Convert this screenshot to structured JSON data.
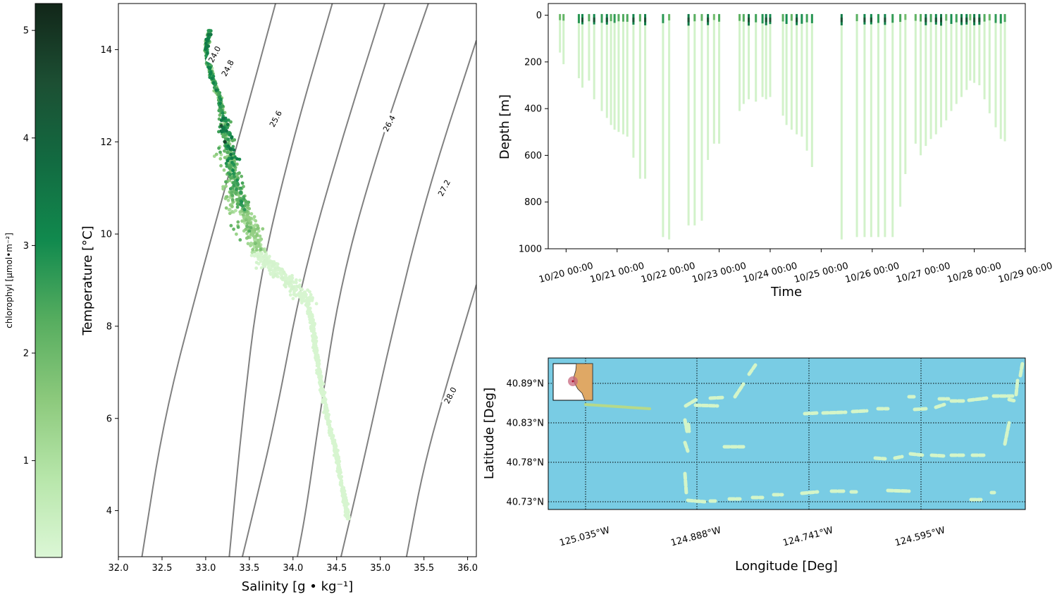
{
  "colorbar": {
    "label": "chlorophyl [μmol•m⁻²]",
    "ticks": [
      1,
      2,
      3,
      4,
      5
    ],
    "range": [
      0.1,
      5.25
    ],
    "colors": [
      "#dcf7d6",
      "#b7e6aa",
      "#8cc97c",
      "#56ad5f",
      "#118a4e",
      "#126b41",
      "#1c4f33",
      "#122619"
    ]
  },
  "chart_data": [
    {
      "type": "scatter",
      "name": "ts-diagram",
      "xlabel": "Salinity [g • kg⁻¹]",
      "ylabel": "Temperature [°C]",
      "xlim": [
        32.0,
        36.1
      ],
      "ylim": [
        3.0,
        15.0
      ],
      "xticks": [
        "32.0",
        "32.5",
        "33.0",
        "33.5",
        "34.0",
        "34.5",
        "35.0",
        "35.5",
        "36.0"
      ],
      "yticks": [
        "4",
        "6",
        "8",
        "10",
        "12",
        "14"
      ],
      "isopycnals": [
        {
          "label": "24.0",
          "points": [
            [
              33.8,
              15.0
            ],
            [
              33.37,
              12.0
            ],
            [
              32.93,
              9.0
            ],
            [
              32.52,
              6.0
            ],
            [
              32.27,
              3.0
            ]
          ]
        },
        {
          "label": "24.8",
          "points": [
            [
              34.45,
              15.0
            ],
            [
              33.99,
              12.0
            ],
            [
              33.61,
              9.0
            ],
            [
              33.42,
              6.0
            ],
            [
              33.27,
              3.0
            ]
          ]
        },
        {
          "label": "25.6",
          "points": [
            [
              35.05,
              15.0
            ],
            [
              34.55,
              12.0
            ],
            [
              34.1,
              9.0
            ],
            [
              33.8,
              6.0
            ],
            [
              33.55,
              4.0
            ],
            [
              33.42,
              3.0
            ]
          ]
        },
        {
          "label": "26.4",
          "points": [
            [
              35.55,
              15.0
            ],
            [
              35.0,
              12.0
            ],
            [
              34.55,
              9.0
            ],
            [
              34.3,
              6.0
            ],
            [
              34.15,
              4.0
            ],
            [
              34.05,
              3.0
            ]
          ]
        },
        {
          "label": "27.2",
          "points": [
            [
              36.1,
              14.2
            ],
            [
              35.55,
              11.0
            ],
            [
              35.15,
              8.0
            ],
            [
              34.8,
              5.0
            ],
            [
              34.55,
              3.0
            ]
          ]
        },
        {
          "label": "28.0",
          "points": [
            [
              36.1,
              8.9
            ],
            [
              35.8,
              7.0
            ],
            [
              35.5,
              5.0
            ],
            [
              35.3,
              3.0
            ]
          ]
        }
      ],
      "isopycnal_label_positions": [
        [
          33.1,
          13.9
        ],
        [
          33.25,
          13.6
        ],
        [
          33.8,
          12.5
        ],
        [
          35.1,
          12.4
        ],
        [
          35.73,
          11.0
        ],
        [
          35.8,
          6.5
        ]
      ],
      "path": [
        [
          33.05,
          14.4
        ],
        [
          33.0,
          14.0
        ],
        [
          33.05,
          13.5
        ],
        [
          33.15,
          13.0
        ],
        [
          33.2,
          12.5
        ],
        [
          33.25,
          12.0
        ],
        [
          33.3,
          11.5
        ],
        [
          33.35,
          11.0
        ],
        [
          33.45,
          10.5
        ],
        [
          33.55,
          10.1
        ],
        [
          33.6,
          9.6
        ],
        [
          33.75,
          9.3
        ],
        [
          33.95,
          9.0
        ],
        [
          34.15,
          8.6
        ],
        [
          34.22,
          8.1
        ],
        [
          34.25,
          7.6
        ],
        [
          34.3,
          7.0
        ],
        [
          34.35,
          6.4
        ],
        [
          34.42,
          5.8
        ],
        [
          34.5,
          5.2
        ],
        [
          34.55,
          4.6
        ],
        [
          34.6,
          4.2
        ],
        [
          34.63,
          3.85
        ]
      ],
      "wide": [
        [
          33.15,
          12.0
        ],
        [
          33.3,
          11.2
        ],
        [
          33.25,
          10.7
        ],
        [
          33.4,
          10.2
        ],
        [
          33.5,
          9.8
        ],
        [
          33.7,
          9.4
        ],
        [
          33.85,
          9.1
        ],
        [
          34.0,
          8.8
        ]
      ]
    },
    {
      "type": "line",
      "name": "depth-time",
      "xlabel": "Time",
      "ylabel": "Depth [m]",
      "xlim": [
        -0.35,
        9.0
      ],
      "ylim": [
        1000,
        -50
      ],
      "xticks": [
        "10/20 00:00",
        "10/21 00:00",
        "10/22 00:00",
        "10/23 00:00",
        "10/24 00:00",
        "10/25 00:00",
        "10/26 00:00",
        "10/27 00:00",
        "10/28 00:00",
        "10/29 00:00"
      ],
      "yticks": [
        "0",
        "200",
        "400",
        "600",
        "800",
        "1000"
      ],
      "dives": [
        [
          -0.12,
          160
        ],
        [
          -0.05,
          210
        ],
        [
          0.25,
          270
        ],
        [
          0.32,
          310
        ],
        [
          0.45,
          280
        ],
        [
          0.55,
          360
        ],
        [
          0.7,
          410
        ],
        [
          0.8,
          440
        ],
        [
          0.88,
          470
        ],
        [
          0.95,
          490
        ],
        [
          1.03,
          500
        ],
        [
          1.12,
          510
        ],
        [
          1.2,
          520
        ],
        [
          1.32,
          610
        ],
        [
          1.45,
          700
        ],
        [
          1.55,
          700
        ],
        [
          1.9,
          950
        ],
        [
          2.02,
          960
        ],
        [
          2.4,
          900
        ],
        [
          2.52,
          900
        ],
        [
          2.66,
          880
        ],
        [
          2.78,
          620
        ],
        [
          2.9,
          550
        ],
        [
          3.0,
          550
        ],
        [
          3.4,
          410
        ],
        [
          3.48,
          380
        ],
        [
          3.58,
          360
        ],
        [
          3.72,
          370
        ],
        [
          3.85,
          350
        ],
        [
          3.92,
          360
        ],
        [
          4.0,
          350
        ],
        [
          4.25,
          430
        ],
        [
          4.32,
          470
        ],
        [
          4.42,
          490
        ],
        [
          4.52,
          510
        ],
        [
          4.62,
          520
        ],
        [
          4.72,
          580
        ],
        [
          4.82,
          650
        ],
        [
          5.4,
          960
        ],
        [
          5.7,
          950
        ],
        [
          5.85,
          950
        ],
        [
          5.98,
          950
        ],
        [
          6.12,
          950
        ],
        [
          6.25,
          950
        ],
        [
          6.4,
          950
        ],
        [
          6.55,
          820
        ],
        [
          6.65,
          680
        ],
        [
          6.85,
          550
        ],
        [
          6.95,
          600
        ],
        [
          7.05,
          560
        ],
        [
          7.15,
          530
        ],
        [
          7.25,
          510
        ],
        [
          7.35,
          480
        ],
        [
          7.45,
          450
        ],
        [
          7.55,
          410
        ],
        [
          7.65,
          380
        ],
        [
          7.75,
          350
        ],
        [
          7.85,
          320
        ],
        [
          7.92,
          280
        ],
        [
          8.0,
          290
        ],
        [
          8.1,
          300
        ],
        [
          8.2,
          360
        ],
        [
          8.3,
          420
        ],
        [
          8.42,
          480
        ],
        [
          8.52,
          530
        ],
        [
          8.6,
          540
        ]
      ]
    },
    {
      "type": "map",
      "name": "track-map",
      "xlabel": "Longitude [Deg]",
      "ylabel": "Latitude [Deg]",
      "xticks": [
        "125.035°W",
        "124.888°W",
        "124.741°W",
        "124.595°W"
      ],
      "yticks": [
        "40.89°N",
        "40.83°N",
        "40.78°N",
        "40.73°N"
      ],
      "colors": {
        "ocean": "#79cce4",
        "land": "#dfa865",
        "track": "#d4f5c8",
        "track_start": "#b5d98a"
      }
    }
  ]
}
